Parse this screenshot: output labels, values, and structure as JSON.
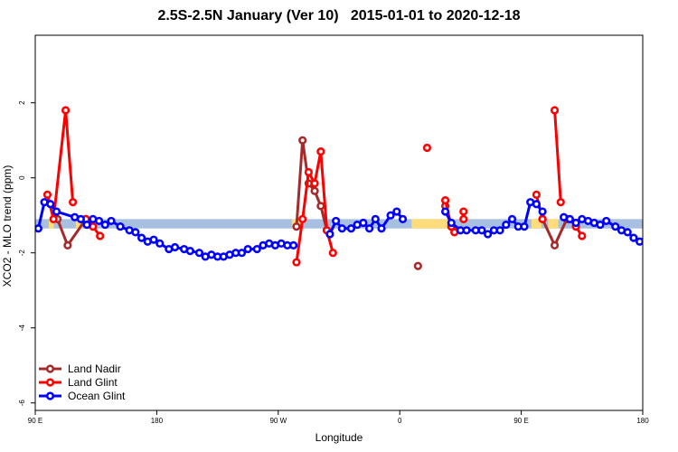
{
  "chart_data": {
    "type": "line",
    "title": "2.5S-2.5N January (Ver 10)   2015-01-01 to 2020-12-18",
    "xlabel": "Longitude",
    "ylabel": "XCO2 - MLO trend (ppm)",
    "xlim": [
      0,
      360
    ],
    "ylim": [
      -6.2,
      3.8
    ],
    "x_ticks": [
      {
        "value": 0,
        "label": "90 E"
      },
      {
        "value": 72,
        "label": "180"
      },
      {
        "value": 144,
        "label": "90 W"
      },
      {
        "value": 216,
        "label": "0"
      },
      {
        "value": 288,
        "label": "90 E"
      },
      {
        "value": 360,
        "label": "180"
      }
    ],
    "y_ticks": [
      {
        "value": 2,
        "label": "2"
      },
      {
        "value": 0,
        "label": "0"
      },
      {
        "value": -2,
        "label": "-2"
      },
      {
        "value": -4,
        "label": "-4"
      },
      {
        "value": -6,
        "label": "-6"
      }
    ],
    "grid": false,
    "legend_position": "bottom-left",
    "land_ocean_band": {
      "y_range": [
        -1.35,
        -1.1
      ],
      "colors": {
        "ocean": "#a7bfe0",
        "land": "#fedc7c"
      },
      "land_segments": [
        [
          8,
          11
        ],
        [
          24,
          28
        ],
        [
          152,
          158
        ],
        [
          223,
          249
        ],
        [
          294,
          300
        ],
        [
          304,
          310
        ]
      ]
    },
    "series": [
      {
        "name": "Land Nadir",
        "color": "#a52a2a",
        "segments": [
          [
            [
              13.2,
              -1.1
            ],
            [
              19.2,
              -1.8
            ],
            [
              30,
              -1.1
            ]
          ],
          [
            [
              154.8,
              -1.3
            ],
            [
              158.4,
              1.0
            ],
            [
              162,
              -0.15
            ],
            [
              165.6,
              -0.35
            ],
            [
              169.2,
              -0.75
            ],
            [
              172.8,
              -1.4
            ]
          ],
          [
            [
              226.8,
              -2.35
            ]
          ],
          [
            [
              243,
              -0.75
            ],
            [
              246.6,
              -1.3
            ]
          ],
          [
            [
              300.6,
              -1.1
            ],
            [
              307.8,
              -1.8
            ],
            [
              315,
              -1.1
            ]
          ]
        ]
      },
      {
        "name": "Land Glint",
        "color": "#ff0000",
        "segments": [
          [
            [
              7.2,
              -0.45
            ],
            [
              10.8,
              -1.1
            ],
            [
              18,
              1.8
            ],
            [
              22.3,
              -0.65
            ]
          ],
          [
            [
              30,
              -1.1
            ],
            [
              34.2,
              -1.3
            ],
            [
              38.4,
              -1.55
            ]
          ],
          [
            [
              154.8,
              -2.25
            ],
            [
              158.4,
              -1.1
            ],
            [
              162,
              0.15
            ],
            [
              165.6,
              -0.15
            ],
            [
              169.2,
              0.7
            ],
            [
              172.8,
              -1.4
            ],
            [
              176.4,
              -2.0
            ]
          ],
          [
            [
              232.2,
              0.8
            ]
          ],
          [
            [
              243,
              -0.6
            ],
            [
              246.6,
              -1.3
            ],
            [
              248.4,
              -1.45
            ]
          ],
          [
            [
              253.8,
              -0.9
            ],
            [
              253.8,
              -1.1
            ]
          ],
          [
            [
              297,
              -0.45
            ],
            [
              300.6,
              -1.1
            ]
          ],
          [
            [
              307.8,
              1.8
            ],
            [
              311.4,
              -0.65
            ]
          ],
          [
            [
              316.8,
              -1.1
            ],
            [
              320.4,
              -1.3
            ],
            [
              324,
              -1.55
            ]
          ]
        ]
      },
      {
        "name": "Ocean Glint",
        "color": "#0000ff",
        "segments": [
          [
            [
              1.8,
              -1.35
            ],
            [
              5.4,
              -0.65
            ],
            [
              9,
              -0.7
            ],
            [
              12.6,
              -0.9
            ],
            [
              23.4,
              -1.05
            ],
            [
              27,
              -1.1
            ],
            [
              30.6,
              -1.25
            ],
            [
              34.2,
              -1.1
            ],
            [
              37.8,
              -1.15
            ],
            [
              41.4,
              -1.25
            ],
            [
              45,
              -1.15
            ],
            [
              50.4,
              -1.3
            ],
            [
              55.8,
              -1.4
            ],
            [
              59.4,
              -1.45
            ],
            [
              63,
              -1.6
            ],
            [
              66.6,
              -1.7
            ],
            [
              70.2,
              -1.65
            ],
            [
              73.8,
              -1.75
            ],
            [
              79.2,
              -1.9
            ],
            [
              82.8,
              -1.85
            ],
            [
              88.2,
              -1.9
            ],
            [
              91.8,
              -1.95
            ],
            [
              97.2,
              -2.0
            ],
            [
              100.8,
              -2.1
            ],
            [
              104.4,
              -2.05
            ],
            [
              108,
              -2.1
            ],
            [
              111.6,
              -2.1
            ],
            [
              115.2,
              -2.05
            ],
            [
              118.8,
              -2.0
            ],
            [
              122.4,
              -2.0
            ],
            [
              126,
              -1.9
            ],
            [
              131.4,
              -1.9
            ],
            [
              135,
              -1.8
            ],
            [
              138.6,
              -1.75
            ],
            [
              142.2,
              -1.8
            ],
            [
              145.8,
              -1.75
            ],
            [
              149.4,
              -1.8
            ],
            [
              153,
              -1.8
            ]
          ],
          [
            [
              174.6,
              -1.5
            ],
            [
              178.2,
              -1.15
            ],
            [
              181.8,
              -1.35
            ],
            [
              187.2,
              -1.35
            ],
            [
              190.8,
              -1.25
            ],
            [
              194.4,
              -1.2
            ],
            [
              198,
              -1.35
            ],
            [
              201.6,
              -1.1
            ],
            [
              205.2,
              -1.35
            ],
            [
              210.6,
              -1.0
            ],
            [
              214.2,
              -0.9
            ],
            [
              217.8,
              -1.1
            ]
          ],
          [
            [
              243,
              -0.9
            ],
            [
              246.6,
              -1.2
            ],
            [
              252,
              -1.4
            ],
            [
              255.6,
              -1.4
            ],
            [
              261,
              -1.4
            ],
            [
              264.6,
              -1.4
            ],
            [
              268.2,
              -1.5
            ],
            [
              271.8,
              -1.4
            ],
            [
              275.4,
              -1.4
            ],
            [
              279,
              -1.25
            ],
            [
              282.6,
              -1.1
            ],
            [
              286.2,
              -1.3
            ],
            [
              289.8,
              -1.3
            ],
            [
              293.4,
              -0.65
            ],
            [
              297,
              -0.7
            ],
            [
              300.6,
              -0.9
            ]
          ],
          [
            [
              313.2,
              -1.05
            ],
            [
              316.8,
              -1.1
            ],
            [
              320.4,
              -1.2
            ],
            [
              324,
              -1.1
            ],
            [
              327.6,
              -1.15
            ],
            [
              331.2,
              -1.2
            ],
            [
              334.8,
              -1.25
            ],
            [
              338.4,
              -1.15
            ],
            [
              343.8,
              -1.3
            ],
            [
              347.4,
              -1.4
            ],
            [
              351,
              -1.45
            ],
            [
              354.6,
              -1.6
            ],
            [
              358.2,
              -1.7
            ],
            [
              361.8,
              -1.65
            ]
          ]
        ]
      }
    ]
  }
}
